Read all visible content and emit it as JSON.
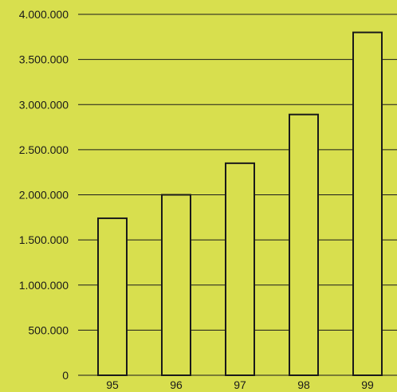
{
  "colors": {
    "background": "#d8df4e",
    "bar_fill": "#d8df4e",
    "bar_stroke": "#1a1a1a",
    "grid": "#1a1a1a"
  },
  "chart_data": {
    "type": "bar",
    "title": "",
    "xlabel": "",
    "ylabel": "",
    "categories": [
      "95",
      "96",
      "97",
      "98",
      "99"
    ],
    "values": [
      1740000,
      2000000,
      2350000,
      2890000,
      3800000
    ],
    "ylim": [
      0,
      4000000
    ],
    "y_ticks": [
      0,
      500000,
      1000000,
      1500000,
      2000000,
      2500000,
      3000000,
      3500000,
      4000000
    ],
    "y_tick_labels": [
      "0",
      "500.000",
      "1.000.000",
      "1.500.000",
      "2.000.000",
      "2.500.000",
      "3.000.000",
      "3.500.000",
      "4.000.000"
    ],
    "grid": true,
    "legend": "none"
  }
}
